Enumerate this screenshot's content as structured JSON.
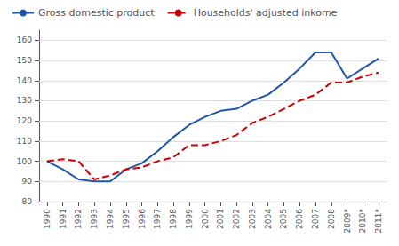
{
  "chart_data": {
    "type": "line",
    "categories": [
      "1990",
      "1991",
      "1992",
      "1993",
      "1994",
      "1995",
      "1996",
      "1997",
      "1998",
      "1999",
      "2000",
      "2001",
      "2002",
      "2003",
      "2004",
      "2005",
      "2006",
      "2007",
      "2008",
      "2009*",
      "2010*",
      "2011*"
    ],
    "series": [
      {
        "name": "Gross domestic product",
        "color": "#2255aa",
        "line_style": "solid",
        "values": [
          100,
          96,
          91,
          90,
          90,
          96,
          99,
          105,
          112,
          118,
          122,
          125,
          126,
          130,
          133,
          139,
          146,
          154,
          154,
          141,
          146,
          151
        ]
      },
      {
        "name": "Households' adjusted inkome",
        "color": "#cc0000",
        "line_style": "dashed",
        "values": [
          100,
          101,
          100,
          91,
          93,
          96,
          97,
          100,
          102,
          108,
          108,
          110,
          113,
          119,
          122,
          126,
          130,
          133,
          139,
          139,
          142,
          144
        ]
      }
    ],
    "ylim": [
      80,
      165
    ],
    "yticks": [
      80,
      90,
      100,
      110,
      120,
      130,
      140,
      150,
      160
    ],
    "grid": true,
    "legend": "upper left"
  }
}
